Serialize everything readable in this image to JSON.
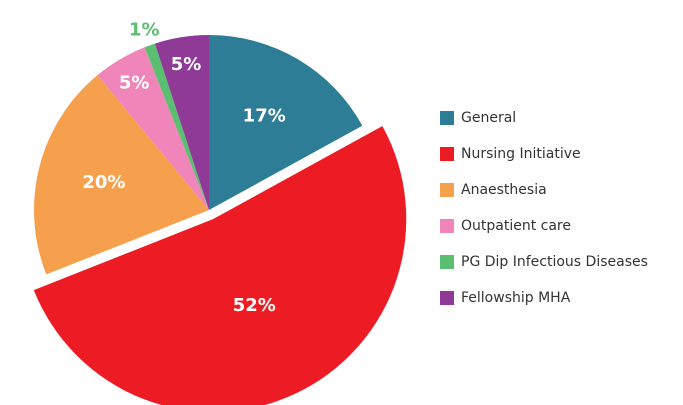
{
  "chart_data": {
    "type": "pie",
    "categories": [
      "General",
      "Nursing Initiative",
      "Anaesthesia",
      "Outpatient care",
      "PG Dip Infectious Diseases",
      "Fellowship MHA"
    ],
    "values": [
      17,
      52,
      20,
      5,
      1,
      5
    ],
    "value_labels": [
      "17%",
      "52%",
      "20%",
      "5%",
      "1%",
      "5%"
    ],
    "colors": [
      "#2e7d96",
      "#ed1c24",
      "#f6a04d",
      "#f085b9",
      "#5bbf72",
      "#8e3a96"
    ]
  }
}
